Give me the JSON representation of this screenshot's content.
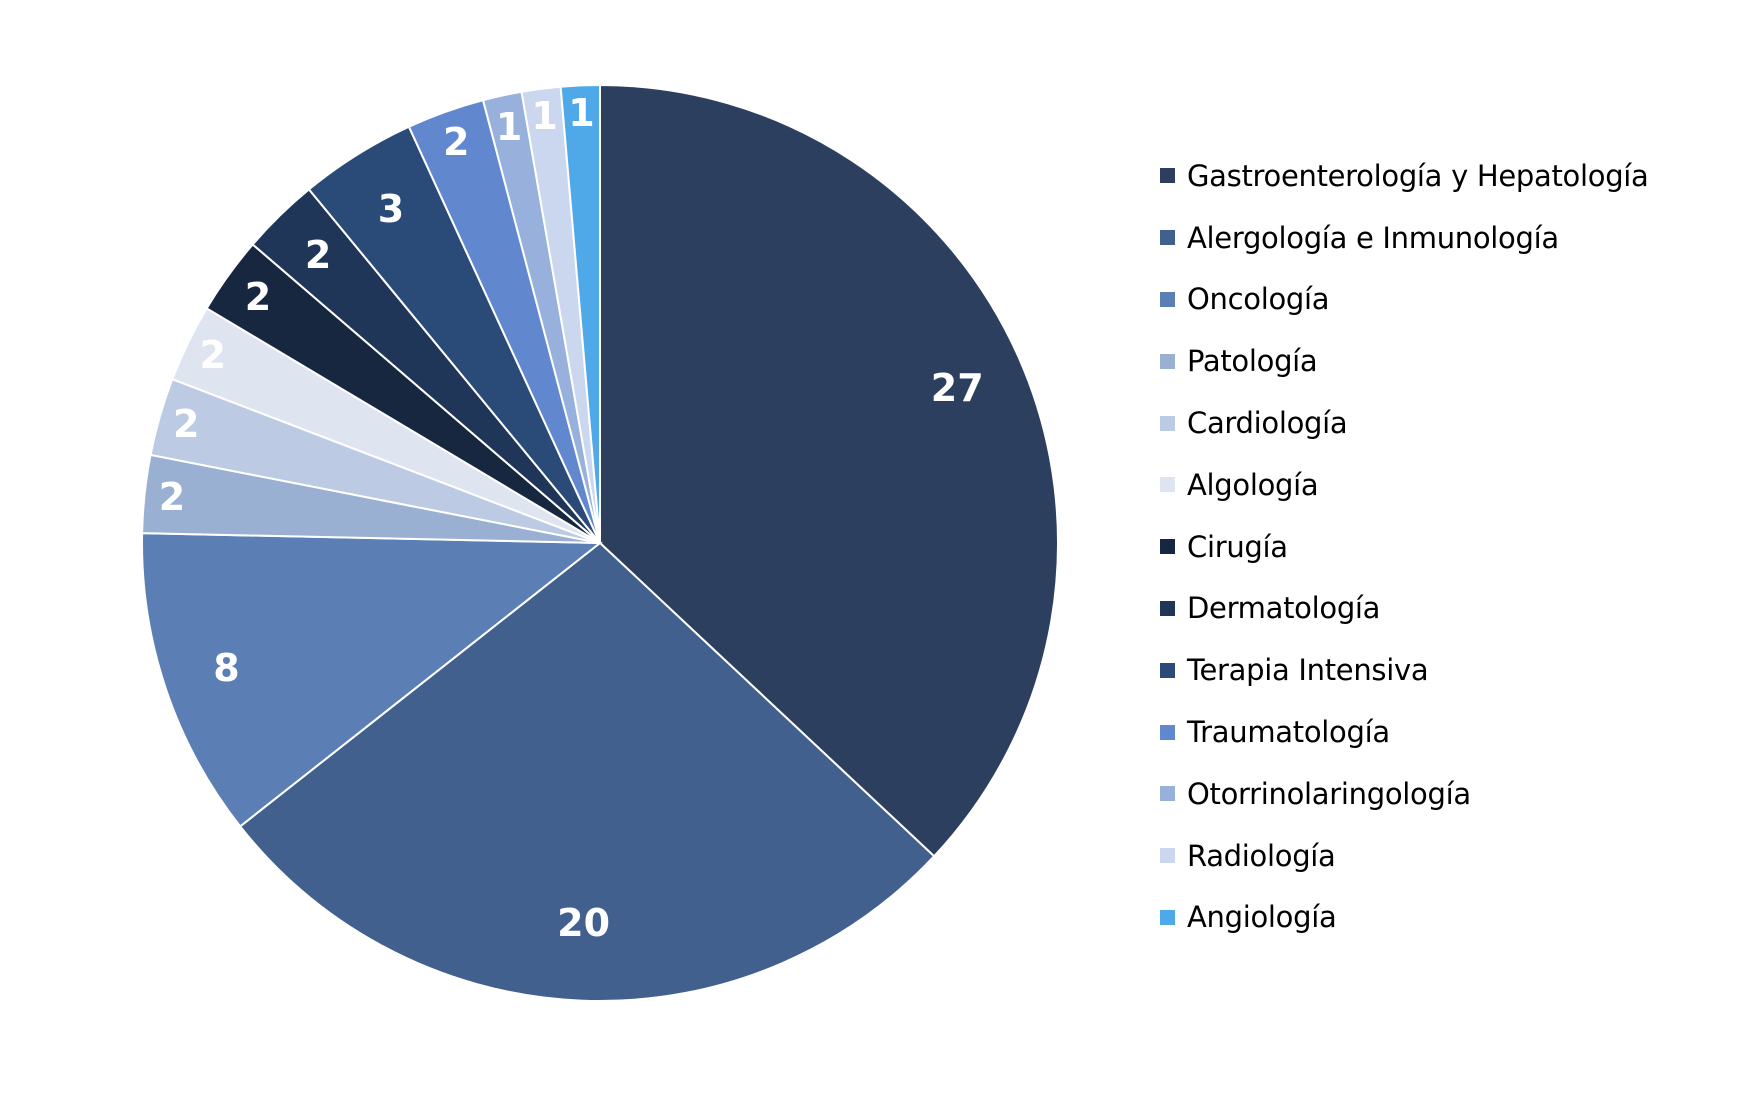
{
  "chart_data": {
    "type": "pie",
    "title": "",
    "legend_position": "right",
    "start_angle": "top",
    "direction": "clockwise",
    "slices": [
      {
        "label": "Gastroenterología y Hepatología",
        "value": 27,
        "color": "#2c3f5f"
      },
      {
        "label": "Alergología e Inmunología",
        "value": 20,
        "color": "#42608d"
      },
      {
        "label": "Oncología",
        "value": 8,
        "color": "#5b7fb5"
      },
      {
        "label": "Patología",
        "value": 2,
        "color": "#9ab0d3"
      },
      {
        "label": "Cardiología",
        "value": 2,
        "color": "#bccbe3"
      },
      {
        "label": "Algología",
        "value": 2,
        "color": "#dee5f1"
      },
      {
        "label": "Cirugía",
        "value": 2,
        "color": "#182740"
      },
      {
        "label": "Dermatología",
        "value": 2,
        "color": "#203658"
      },
      {
        "label": "Terapia Intensiva",
        "value": 3,
        "color": "#2a4a78"
      },
      {
        "label": "Traumatología",
        "value": 2,
        "color": "#6188cf"
      },
      {
        "label": "Otorrinolaringología",
        "value": 1,
        "color": "#97b0dc"
      },
      {
        "label": "Radiología",
        "value": 1,
        "color": "#cad7ee"
      },
      {
        "label": "Angiología",
        "value": 1,
        "color": "#4fa9e9"
      }
    ]
  }
}
